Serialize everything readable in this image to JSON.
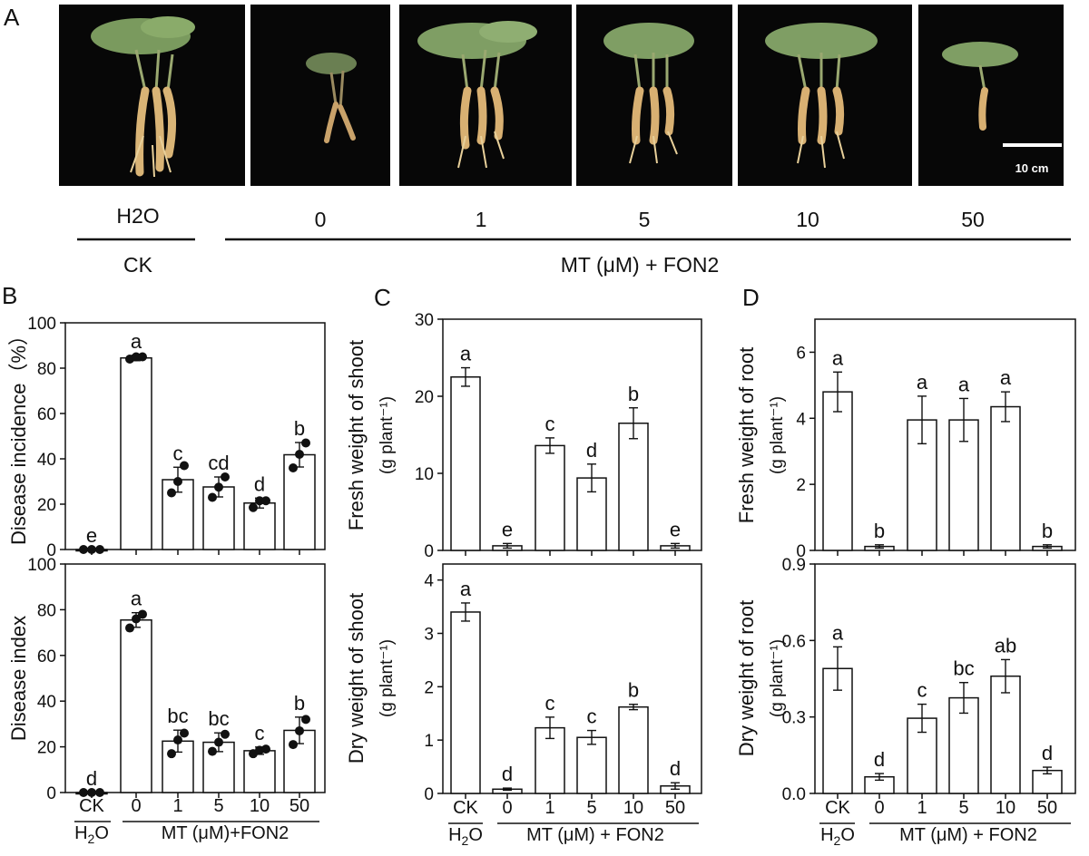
{
  "panels": {
    "A": "A",
    "B": "B",
    "C": "C",
    "D": "D"
  },
  "photo_row": {
    "panel_label": "A",
    "treatment_labels": [
      "H2O",
      "0",
      "1",
      "5",
      "10",
      "50"
    ],
    "ck_label": "CK",
    "group_label": "MT (μM) + FON2",
    "scale_bar_label": "10 cm"
  },
  "x_axis": {
    "bc": {
      "ticks": [
        "CK",
        "0",
        "1",
        "5",
        "10",
        "50"
      ],
      "control_label": "H2O",
      "group_label": "MT (μM)+FON2"
    },
    "c": {
      "ticks": [
        "CK",
        "0",
        "1",
        "5",
        "10",
        "50"
      ],
      "control_label": "H2O",
      "group_label": "MT (μM) + FON2"
    },
    "d": {
      "ticks": [
        "CK",
        "0",
        "1",
        "5",
        "10",
        "50"
      ],
      "control_label": "H2O",
      "group_label": "MT (μM) + FON2"
    }
  },
  "colors": {
    "bar_fill": "#ffffff",
    "stroke": "#111111",
    "point": "#111111",
    "photo_background": "#070707"
  },
  "chart_data": [
    {
      "panel": "B",
      "type": "bar",
      "ylabel": "Disease incidence（%）",
      "categories": [
        "CK",
        "0",
        "1",
        "5",
        "10",
        "50"
      ],
      "values": [
        0,
        84.5,
        30.8,
        27.6,
        20.5,
        41.8
      ],
      "errors": [
        0,
        1.2,
        5.5,
        4.4,
        2.2,
        5.4
      ],
      "points": [
        [
          0,
          0,
          0
        ],
        [
          84,
          85,
          85
        ],
        [
          25,
          30,
          37
        ],
        [
          23,
          27.5,
          32
        ],
        [
          18.5,
          21.5,
          21.5
        ],
        [
          36,
          42,
          47
        ]
      ],
      "letters": [
        "e",
        "a",
        "c",
        "cd",
        "d",
        "b"
      ],
      "ylim": [
        0,
        100
      ],
      "yticks": [
        0,
        20,
        40,
        60,
        80,
        100
      ],
      "grid": false,
      "style": "bar with error bars and individual points"
    },
    {
      "panel": "B",
      "type": "bar",
      "ylabel": "Disease index",
      "categories": [
        "CK",
        "0",
        "1",
        "5",
        "10",
        "50"
      ],
      "values": [
        0,
        75.5,
        22.5,
        22,
        18.3,
        27.2
      ],
      "errors": [
        0,
        3.2,
        4.8,
        4.1,
        1.6,
        5.8
      ],
      "points": [
        [
          0,
          0,
          0
        ],
        [
          72,
          76,
          78
        ],
        [
          17,
          23,
          26
        ],
        [
          18,
          22,
          25.5
        ],
        [
          17,
          18.5,
          19
        ],
        [
          21,
          27,
          32
        ]
      ],
      "letters": [
        "d",
        "a",
        "bc",
        "bc",
        "c",
        "b"
      ],
      "ylim": [
        0,
        100
      ],
      "yticks": [
        0,
        20,
        40,
        60,
        80,
        100
      ],
      "grid": false,
      "style": "bar with error bars and individual points"
    },
    {
      "panel": "C",
      "type": "bar",
      "ylabel": "Fresh  weight of shoot",
      "ylabel_unit": "(g plant⁻¹)",
      "categories": [
        "CK",
        "0",
        "1",
        "5",
        "10",
        "50"
      ],
      "values": [
        22.5,
        0.6,
        13.6,
        9.4,
        16.5,
        0.6
      ],
      "errors": [
        1.2,
        0.3,
        1.0,
        1.8,
        2.0,
        0.3
      ],
      "letters": [
        "a",
        "e",
        "c",
        "d",
        "b",
        "e"
      ],
      "ylim": [
        0,
        30
      ],
      "yticks": [
        0,
        10,
        20,
        30
      ],
      "grid": false,
      "style": "bar with error bars"
    },
    {
      "panel": "C",
      "type": "bar",
      "ylabel": "Dry  weight of shoot",
      "ylabel_unit": "(g plant⁻¹)",
      "categories": [
        "CK",
        "0",
        "1",
        "5",
        "10",
        "50"
      ],
      "values": [
        3.4,
        0.08,
        1.23,
        1.05,
        1.62,
        0.14
      ],
      "errors": [
        0.17,
        0.02,
        0.2,
        0.13,
        0.05,
        0.06
      ],
      "letters": [
        "a",
        "d",
        "c",
        "c",
        "b",
        "d"
      ],
      "ylim": [
        0,
        4.3
      ],
      "yticks": [
        0,
        1,
        2,
        3,
        4
      ],
      "grid": false,
      "style": "bar with error bars"
    },
    {
      "panel": "D",
      "type": "bar",
      "ylabel": "Fresh  weight of root",
      "ylabel_unit": "(g plant⁻¹)",
      "categories": [
        "CK",
        "0",
        "1",
        "5",
        "10",
        "50"
      ],
      "values": [
        4.8,
        0.12,
        3.95,
        3.95,
        4.35,
        0.12
      ],
      "errors": [
        0.6,
        0.05,
        0.72,
        0.65,
        0.45,
        0.05
      ],
      "letters": [
        "a",
        "b",
        "a",
        "a",
        "a",
        "b"
      ],
      "ylim": [
        0,
        7
      ],
      "yticks": [
        0,
        2,
        4,
        6
      ],
      "grid": false,
      "style": "bar with error bars"
    },
    {
      "panel": "D",
      "type": "bar",
      "ylabel": "Dry  weight of root",
      "ylabel_unit": "(g plant⁻¹)",
      "categories": [
        "CK",
        "0",
        "1",
        "5",
        "10",
        "50"
      ],
      "values": [
        0.49,
        0.065,
        0.295,
        0.375,
        0.46,
        0.09
      ],
      "errors": [
        0.085,
        0.013,
        0.055,
        0.06,
        0.065,
        0.013
      ],
      "letters": [
        "a",
        "d",
        "c",
        "bc",
        "ab",
        "d"
      ],
      "ylim": [
        0,
        0.9
      ],
      "yticks": [
        0.0,
        0.3,
        0.6,
        0.9
      ],
      "grid": false,
      "style": "bar with error bars"
    }
  ]
}
